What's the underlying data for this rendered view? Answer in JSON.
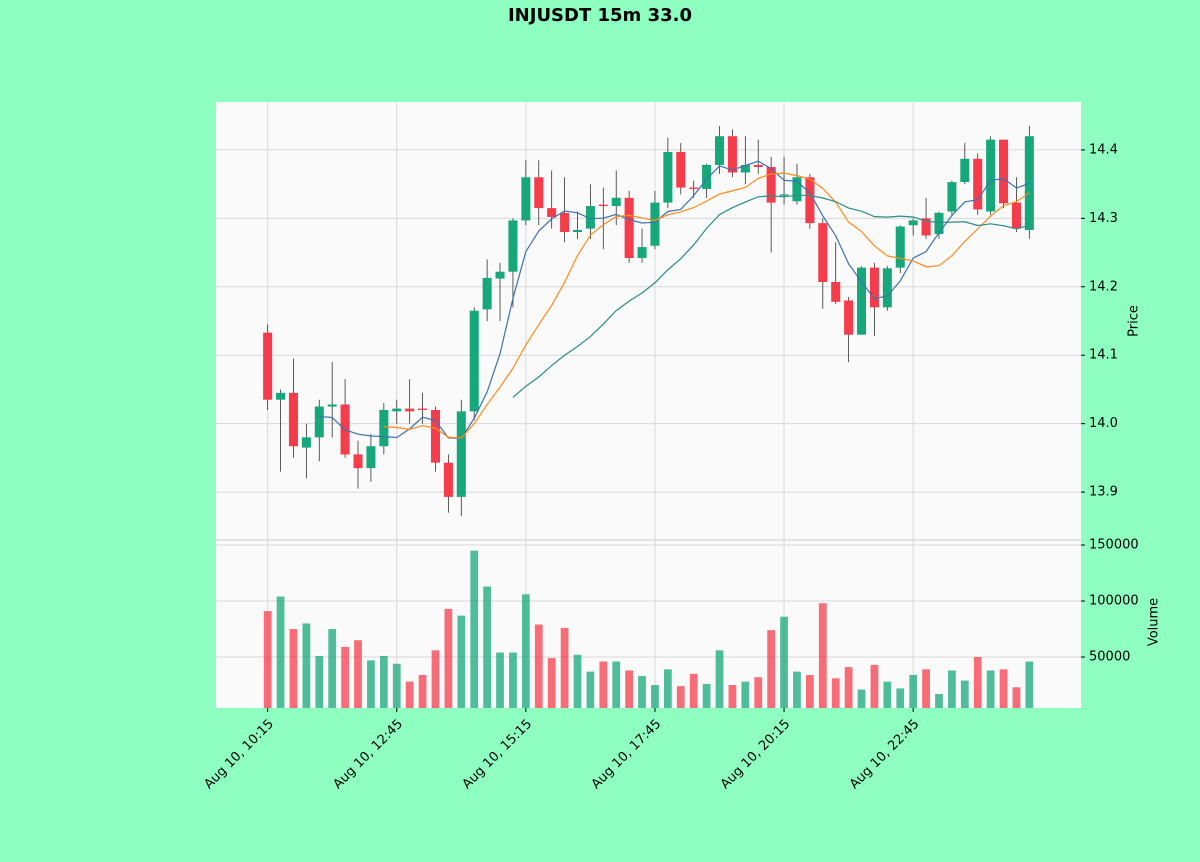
{
  "chart_data": {
    "type": "candlestick",
    "title": "INJUSDT 15m 33.0",
    "categories": [
      "Aug 10, 10:15",
      null,
      null,
      null,
      null,
      null,
      null,
      null,
      null,
      null,
      "Aug 10, 12:45",
      null,
      null,
      null,
      null,
      null,
      null,
      null,
      null,
      null,
      "Aug 10, 15:15",
      null,
      null,
      null,
      null,
      null,
      null,
      null,
      null,
      null,
      "Aug 10, 17:45",
      null,
      null,
      null,
      null,
      null,
      null,
      null,
      null,
      null,
      "Aug 10, 20:15",
      null,
      null,
      null,
      null,
      null,
      null,
      null,
      null,
      null,
      "Aug 10, 22:45",
      null,
      null,
      null,
      null,
      null,
      null,
      null,
      null,
      null
    ],
    "open": [
      14.133,
      14.035,
      14.045,
      13.965,
      13.98,
      14.025,
      14.028,
      13.955,
      13.935,
      13.967,
      14.018,
      14.022,
      14.022,
      14.02,
      13.943,
      13.893,
      14.018,
      14.167,
      14.212,
      14.222,
      14.297,
      14.36,
      14.315,
      14.308,
      14.28,
      14.285,
      14.32,
      14.318,
      14.33,
      14.242,
      14.26,
      14.323,
      14.397,
      14.345,
      14.343,
      14.378,
      14.42,
      14.367,
      14.378,
      14.375,
      14.333,
      14.325,
      14.36,
      14.293,
      14.207,
      14.18,
      14.13,
      14.228,
      14.17,
      14.228,
      14.29,
      14.3,
      14.277,
      14.31,
      14.353,
      14.387,
      14.31,
      14.415,
      14.323,
      14.283
    ],
    "high": [
      14.145,
      14.05,
      14.095,
      14.0,
      14.035,
      14.09,
      14.065,
      13.975,
      13.985,
      14.03,
      14.035,
      14.065,
      14.045,
      14.025,
      13.955,
      14.035,
      14.17,
      14.24,
      14.235,
      14.3,
      14.385,
      14.385,
      14.37,
      14.36,
      14.31,
      14.35,
      14.345,
      14.37,
      14.34,
      14.285,
      14.34,
      14.418,
      14.41,
      14.355,
      14.38,
      14.435,
      14.43,
      14.42,
      14.415,
      14.39,
      14.39,
      14.38,
      14.365,
      14.3,
      14.265,
      14.185,
      14.23,
      14.235,
      14.23,
      14.29,
      14.3,
      14.33,
      14.31,
      14.355,
      14.41,
      14.395,
      14.42,
      14.415,
      14.36,
      14.435
    ],
    "low": [
      14.02,
      13.93,
      13.95,
      13.92,
      13.945,
      13.98,
      13.95,
      13.905,
      13.915,
      13.955,
      14.0,
      14.0,
      14.0,
      13.93,
      13.87,
      13.865,
      14.005,
      14.15,
      14.15,
      14.17,
      14.29,
      14.29,
      14.285,
      14.265,
      14.27,
      14.27,
      14.255,
      14.29,
      14.235,
      14.235,
      14.255,
      14.315,
      14.335,
      14.33,
      14.33,
      14.365,
      14.36,
      14.35,
      14.365,
      14.25,
      14.32,
      14.32,
      14.285,
      14.168,
      14.175,
      14.09,
      14.13,
      14.128,
      14.165,
      14.22,
      14.275,
      14.27,
      14.27,
      14.305,
      14.35,
      14.305,
      14.305,
      14.315,
      14.28,
      14.27
    ],
    "close": [
      14.035,
      14.045,
      13.967,
      13.98,
      14.025,
      14.028,
      13.955,
      13.935,
      13.967,
      14.02,
      14.022,
      14.018,
      14.02,
      13.943,
      13.893,
      14.018,
      14.165,
      14.213,
      14.222,
      14.297,
      14.36,
      14.315,
      14.302,
      14.28,
      14.283,
      14.318,
      14.318,
      14.33,
      14.242,
      14.258,
      14.323,
      14.397,
      14.345,
      14.343,
      14.378,
      14.42,
      14.367,
      14.378,
      14.375,
      14.323,
      14.335,
      14.36,
      14.293,
      14.207,
      14.178,
      14.13,
      14.228,
      14.17,
      14.227,
      14.288,
      14.297,
      14.275,
      14.308,
      14.353,
      14.387,
      14.313,
      14.415,
      14.322,
      14.285,
      14.42
    ],
    "volume": [
      91000,
      104000,
      75000,
      80000,
      51000,
      75000,
      59000,
      65000,
      47000,
      51000,
      44000,
      28000,
      34000,
      56000,
      93000,
      87000,
      145000,
      113000,
      54000,
      54000,
      106000,
      79000,
      49000,
      76000,
      52000,
      37000,
      46000,
      46000,
      38000,
      33000,
      25000,
      39000,
      24000,
      35000,
      26000,
      56000,
      25000,
      28000,
      32000,
      74000,
      86000,
      37000,
      34000,
      98000,
      31000,
      41000,
      21000,
      43000,
      28000,
      22000,
      34000,
      39000,
      17000,
      38000,
      29000,
      50000,
      38000,
      39000,
      23000,
      46000
    ],
    "up_color": "#16a87a",
    "down_color": "#f53c4a",
    "moving_averages": [
      {
        "color": "#3c72ad",
        "values": [
          null,
          null,
          null,
          null,
          14.0104,
          14.009,
          13.991,
          13.9846,
          13.982,
          13.981,
          13.9798,
          13.9924,
          14.0094,
          14.0046,
          13.9792,
          13.9784,
          14.0078,
          14.0464,
          14.1022,
          14.183,
          14.2514,
          14.2814,
          14.2992,
          14.3108,
          14.308,
          14.2996,
          14.3002,
          14.3058,
          14.2982,
          14.2932,
          14.2942,
          14.31,
          14.313,
          14.3332,
          14.3572,
          14.3766,
          14.3706,
          14.3772,
          14.3836,
          14.3726,
          14.3556,
          14.3542,
          14.3372,
          14.3036,
          14.2746,
          14.2336,
          14.2072,
          14.1826,
          14.1866,
          14.2086,
          14.242,
          14.2514,
          14.279,
          14.3042,
          14.324,
          14.3272,
          14.3552,
          14.358,
          14.3444,
          14.351
        ]
      },
      {
        "color": "#ff8a1c",
        "values": [
          null,
          null,
          null,
          null,
          null,
          null,
          null,
          null,
          null,
          13.9957,
          13.9944,
          13.9917,
          13.997,
          13.9933,
          13.9801,
          13.9791,
          14.0001,
          14.0279,
          14.0534,
          14.0811,
          14.1149,
          14.1446,
          14.1728,
          14.2065,
          14.2455,
          14.2755,
          14.2908,
          14.3025,
          14.3045,
          14.3006,
          14.2969,
          14.3051,
          14.3094,
          14.3157,
          14.3252,
          14.3354,
          14.3403,
          14.3451,
          14.3584,
          14.3649,
          14.3661,
          14.3624,
          14.3572,
          14.3436,
          14.3236,
          14.2946,
          14.2807,
          14.2599,
          14.2451,
          14.2416,
          14.2378,
          14.2293,
          14.2308,
          14.2454,
          14.2663,
          14.2846,
          14.3033,
          14.3185,
          14.3243,
          14.3375
        ]
      },
      {
        "color": "#2a8c8c",
        "values": [
          null,
          null,
          null,
          null,
          null,
          null,
          null,
          null,
          null,
          null,
          null,
          null,
          null,
          null,
          null,
          null,
          null,
          null,
          null,
          14.0384,
          14.0547,
          14.0682,
          14.0849,
          14.0999,
          14.1128,
          14.1273,
          14.1455,
          14.1652,
          14.179,
          14.1909,
          14.2059,
          14.2249,
          14.2411,
          14.2611,
          14.2854,
          14.3055,
          14.3156,
          14.3238,
          14.3315,
          14.3328,
          14.3315,
          14.3338,
          14.3333,
          14.3297,
          14.3244,
          14.315,
          14.3105,
          14.3025,
          14.3018,
          14.3033,
          14.302,
          14.2959,
          14.294,
          14.2945,
          14.295,
          14.2896,
          14.292,
          14.2892,
          14.2847,
          14.2896
        ]
      }
    ],
    "ylabel": "Price",
    "ylim": [
      13.83,
      14.47
    ],
    "yticks": [
      13.9,
      {
        "value": 14,
        "label": "14.0"
      },
      14.1,
      14.2,
      14.3,
      14.4
    ],
    "volume_label": "Volume",
    "volume_ylim": [
      4500,
      154500
    ],
    "volume_yticks": [
      50000,
      100000,
      150000
    ],
    "grid": true
  }
}
